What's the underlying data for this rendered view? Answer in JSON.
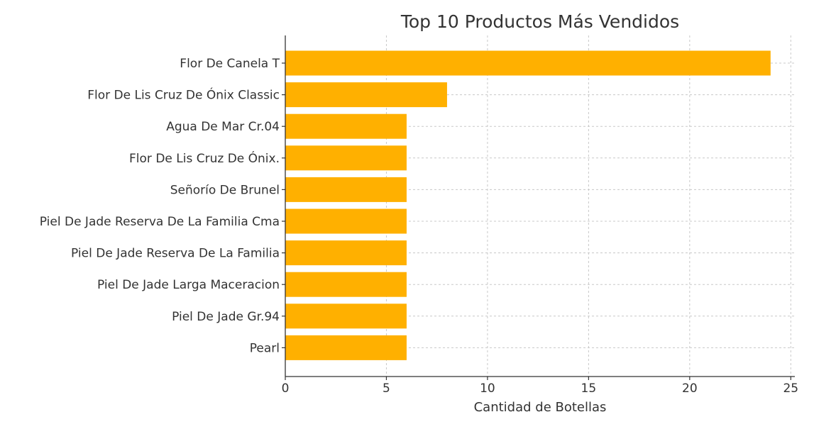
{
  "chart_data": {
    "type": "bar",
    "orientation": "horizontal",
    "title": "Top 10 Productos Más Vendidos",
    "xlabel": "Cantidad de Botellas",
    "ylabel": "",
    "categories": [
      "Flor De Canela T",
      "Flor De Lis Cruz De Ónix Classic",
      "Agua De Mar Cr.04",
      "Flor De Lis Cruz De Ónix.",
      "Señorío De Brunel",
      "Piel De Jade Reserva De La Familia Cma",
      "Piel De Jade Reserva De La Familia",
      "Piel De Jade Larga Maceracion",
      "Piel De Jade Gr.94",
      "Pearl"
    ],
    "values": [
      24,
      8,
      6,
      6,
      6,
      6,
      6,
      6,
      6,
      6
    ],
    "xlim": [
      0,
      25.2
    ],
    "xticks": [
      0,
      5,
      10,
      15,
      20,
      25
    ],
    "grid": true,
    "bar_color": "#ffb000"
  }
}
